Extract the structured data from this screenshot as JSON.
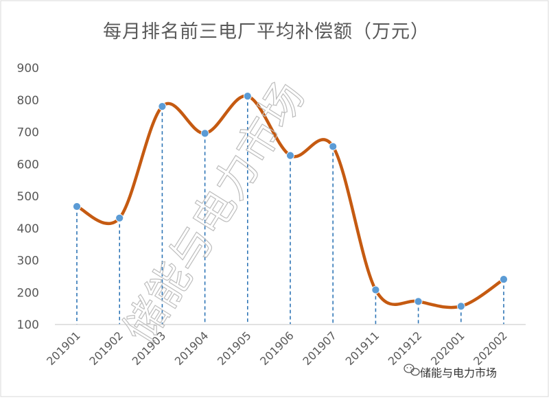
{
  "watermark": "储能与电力市场",
  "source_badge": {
    "icon": "wechat-icon",
    "label": "储能与电力市场"
  },
  "colors": {
    "line": "#C55A11",
    "marker": "#5B9BD5",
    "dropline": "#2E75B6",
    "axis": "#D9D9D9",
    "text": "#595959"
  },
  "chart_data": {
    "type": "line",
    "title": "每月排名前三电厂平均补偿额（万元）",
    "xlabel": "",
    "ylabel": "",
    "categories": [
      "201901",
      "201902",
      "201903",
      "201904",
      "201905",
      "201906",
      "201907",
      "201911",
      "201912",
      "202001",
      "202002"
    ],
    "values": [
      468,
      432,
      780,
      696,
      812,
      627,
      655,
      208,
      172,
      157,
      241
    ],
    "ylim": [
      100,
      900
    ],
    "yticks": [
      "100",
      "200",
      "300",
      "400",
      "500",
      "600",
      "700",
      "800",
      "900"
    ],
    "smooth": true,
    "drop_lines": true,
    "grid": false,
    "legend": "none"
  }
}
